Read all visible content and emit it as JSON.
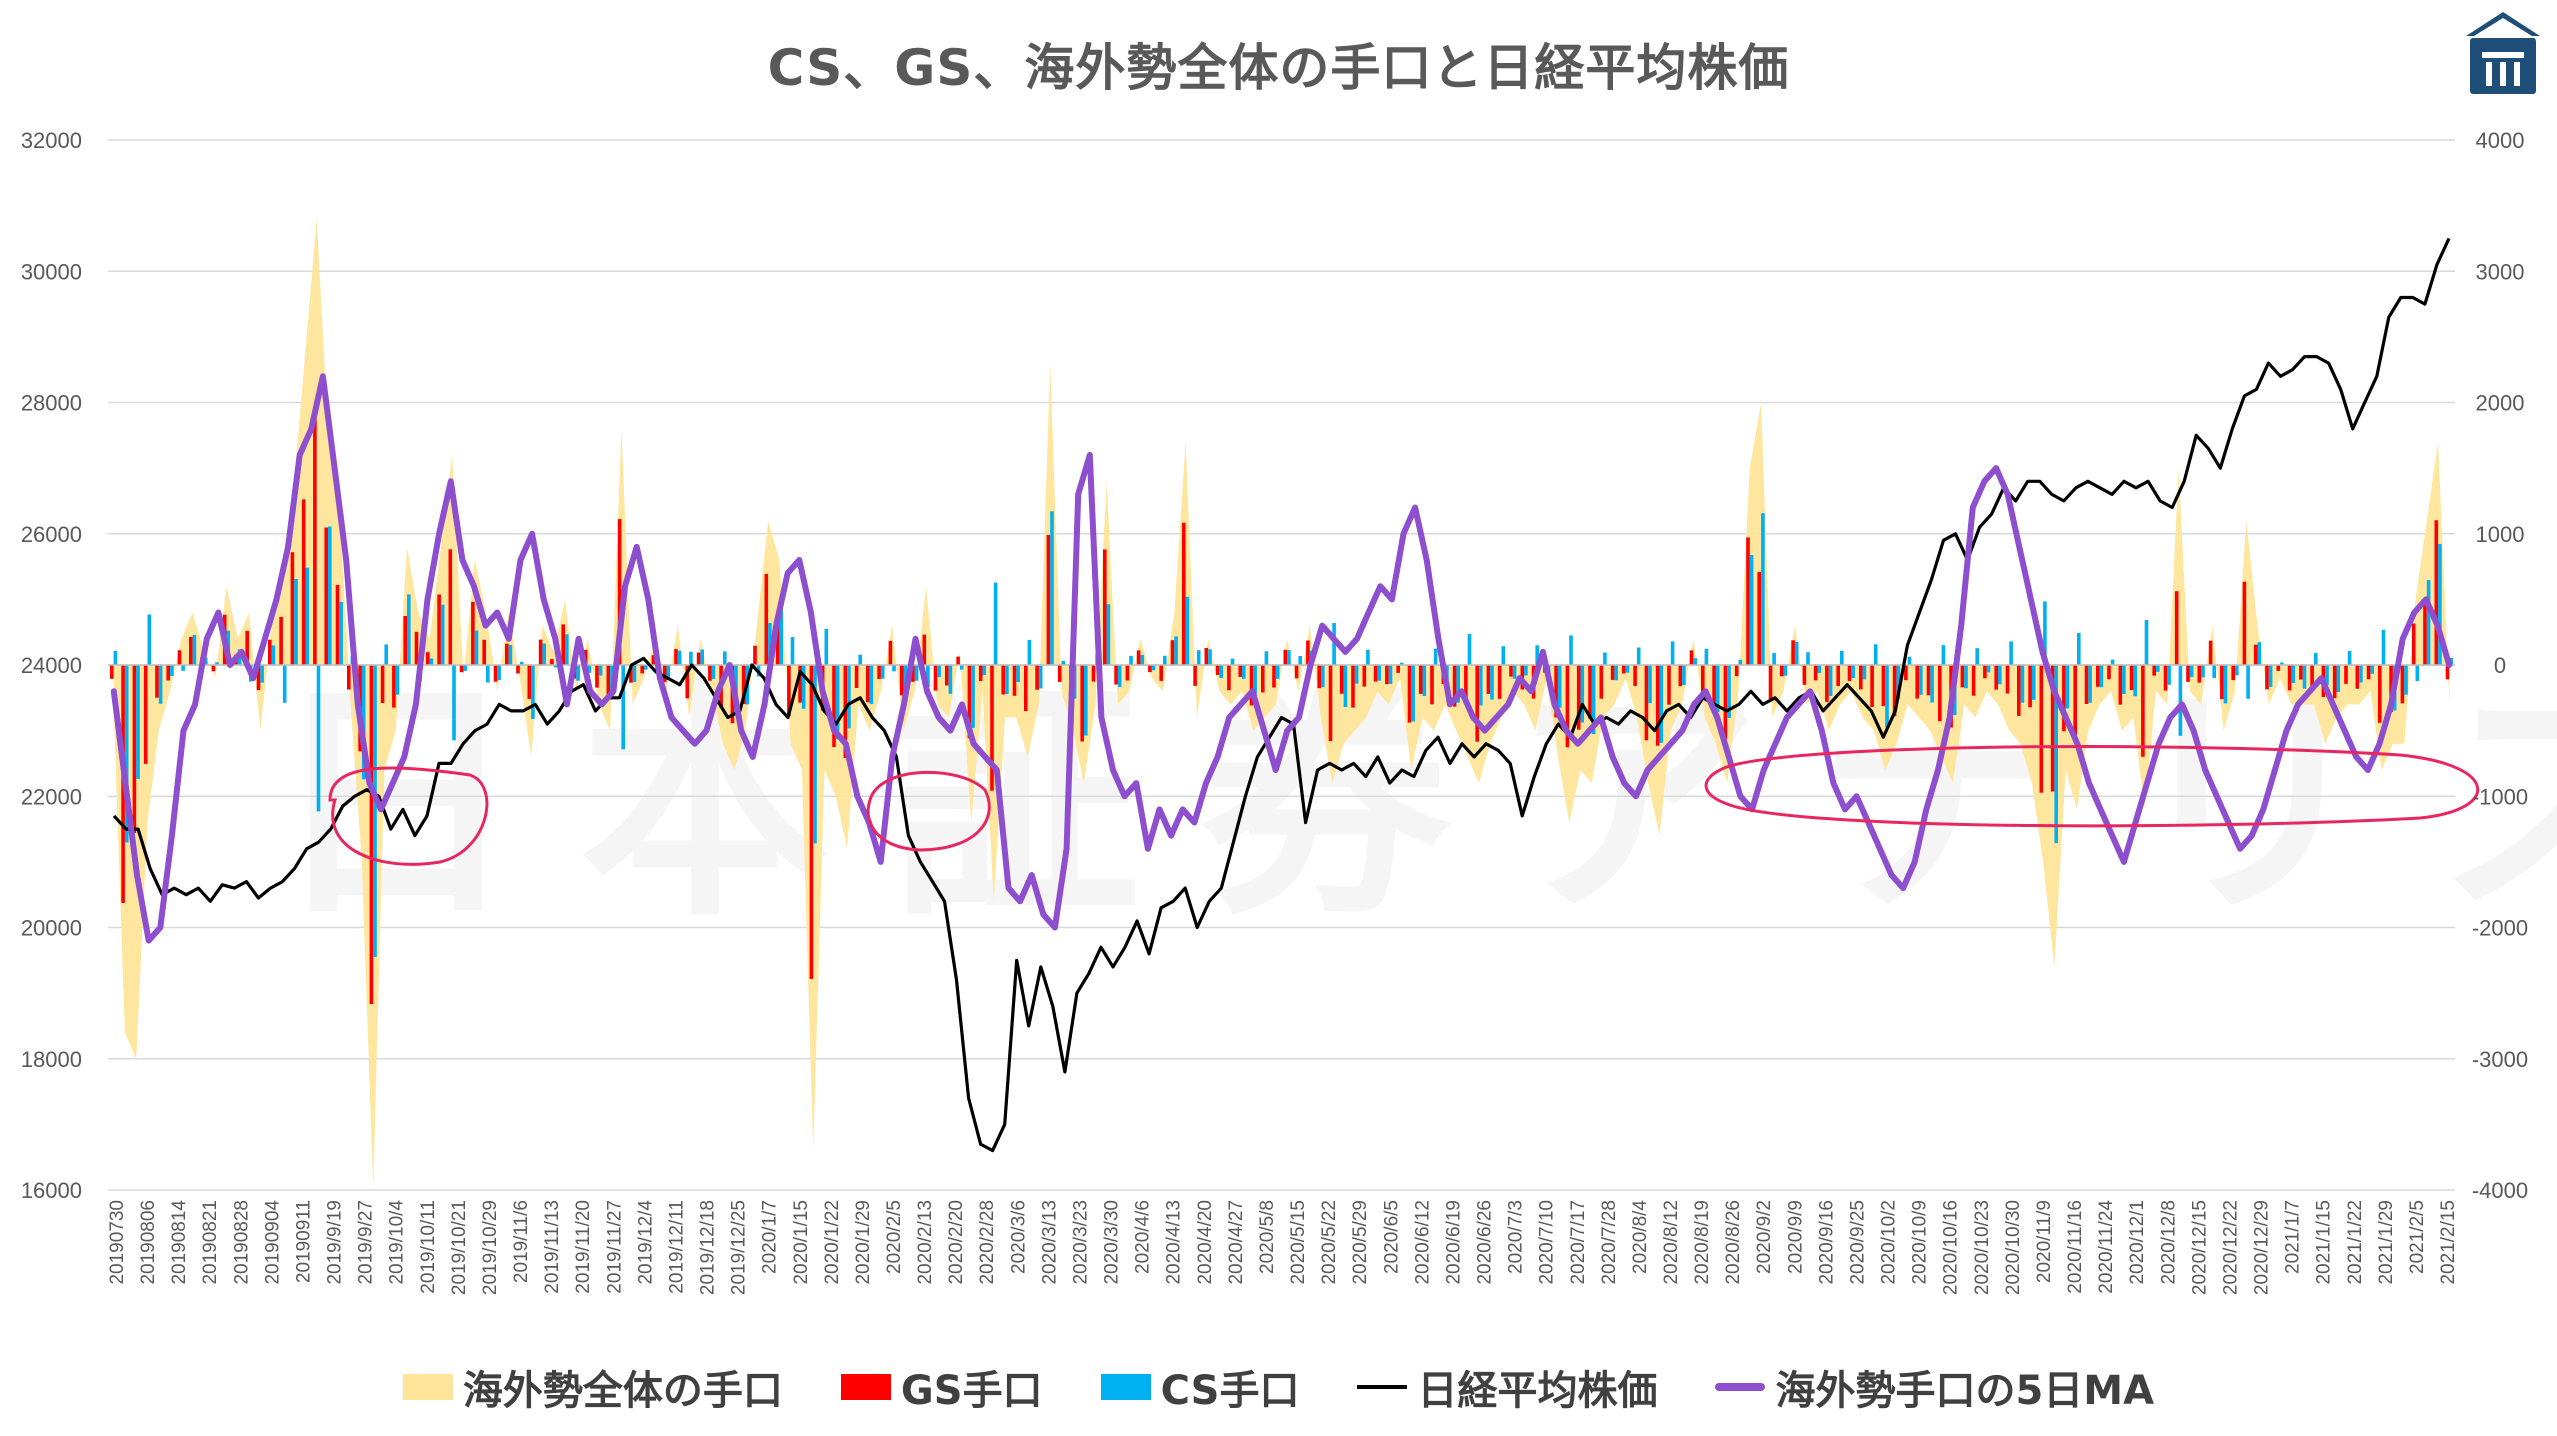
{
  "chart_data": {
    "type": "bar",
    "title": "CS、GS、海外勢全体の手口と日経平均株価",
    "left_axis": {
      "min": 16000,
      "max": 32000,
      "step": 2000,
      "ticks": [
        "16000",
        "18000",
        "20000",
        "22000",
        "24000",
        "26000",
        "28000",
        "30000",
        "32000"
      ]
    },
    "right_axis": {
      "min": -4000,
      "max": 4000,
      "step": 1000,
      "ticks": [
        "-4000",
        "-3000",
        "-2000",
        "-1000",
        "0",
        "1000",
        "2000",
        "3000",
        "4000"
      ]
    },
    "x_tick_labels": [
      "20190730",
      "20190806",
      "20190814",
      "20190821",
      "20190828",
      "20190904",
      "20190911",
      "2019/9/19",
      "2019/9/27",
      "2019/10/4",
      "2019/10/11",
      "2019/10/21",
      "2019/10/29",
      "2019/11/6",
      "2019/11/13",
      "2019/11/20",
      "2019/11/27",
      "2019/12/4",
      "2019/12/11",
      "2019/12/18",
      "2019/12/25",
      "2020/1/7",
      "2020/1/15",
      "2020/1/22",
      "2020/1/29",
      "2020/2/5",
      "2020/2/13",
      "2020/2/20",
      "2020/2/28",
      "2020/3/6",
      "2020/3/13",
      "2020/3/23",
      "2020/3/30",
      "2020/4/6",
      "2020/4/13",
      "2020/4/20",
      "2020/4/27",
      "2020/5/8",
      "2020/5/15",
      "2020/5/22",
      "2020/5/29",
      "2020/6/5",
      "2020/6/12",
      "2020/6/19",
      "2020/6/26",
      "2020/7/3",
      "2020/7/10",
      "2020/7/17",
      "2020/7/28",
      "2020/8/4",
      "2020/8/12",
      "2020/8/19",
      "2020/8/26",
      "2020/9/2",
      "2020/9/9",
      "2020/9/16",
      "2020/9/25",
      "2020/10/2",
      "2020/10/9",
      "2020/10/16",
      "2020/10/23",
      "2020/10/30",
      "2020/11/9",
      "2020/11/16",
      "2020/11/24",
      "2020/12/1",
      "2020/12/8",
      "2020/12/15",
      "2020/12/22",
      "2020/12/29",
      "2021/1/7",
      "2021/1/15",
      "2021/1/22",
      "2021/1/29",
      "2021/2/5",
      "2021/2/15"
    ],
    "series": [
      {
        "name": "海外勢全体の手口",
        "type": "area",
        "axis": "right",
        "color": "#ffe599",
        "values": [
          -300,
          -2800,
          -3000,
          -1200,
          -500,
          -200,
          200,
          400,
          100,
          -100,
          600,
          200,
          400,
          -500,
          300,
          800,
          1400,
          2400,
          3400,
          1800,
          1200,
          -300,
          -1500,
          -4000,
          -800,
          -500,
          900,
          400,
          200,
          900,
          1600,
          -100,
          800,
          400,
          -200,
          400,
          -100,
          -700,
          300,
          100,
          500,
          -200,
          200,
          -300,
          -500,
          1800,
          -300,
          -100,
          200,
          -200,
          300,
          -400,
          200,
          -200,
          -600,
          -800,
          -500,
          300,
          1100,
          800,
          -600,
          -800,
          -3700,
          -800,
          -1000,
          -1400,
          -300,
          -500,
          -200,
          300,
          -500,
          -200,
          600,
          -300,
          -400,
          100,
          -1200,
          -200,
          -1800,
          -400,
          -400,
          -700,
          -300,
          2300,
          -200,
          -500,
          -900,
          -300,
          1400,
          -300,
          -200,
          200,
          -100,
          -200,
          400,
          1700,
          -400,
          200,
          -200,
          -300,
          -200,
          -500,
          -400,
          -300,
          200,
          -200,
          300,
          -400,
          -900,
          -600,
          -500,
          -400,
          -200,
          -300,
          -100,
          -800,
          -400,
          -500,
          -300,
          -500,
          -700,
          -900,
          -600,
          -400,
          -200,
          -300,
          -500,
          -100,
          -700,
          -1200,
          -800,
          -900,
          -400,
          -300,
          -100,
          -400,
          -900,
          -1300,
          -500,
          -300,
          200,
          -400,
          -600,
          -900,
          -200,
          1500,
          2000,
          -400,
          -200,
          300,
          -300,
          -200,
          -500,
          -300,
          -200,
          -400,
          -500,
          -800,
          -600,
          -300,
          -400,
          -500,
          -700,
          -900,
          -300,
          -400,
          -200,
          -300,
          -500,
          -600,
          -900,
          -1500,
          -2300,
          -800,
          -1100,
          -500,
          -300,
          -200,
          -500,
          -400,
          -1100,
          -200,
          -300,
          1500,
          -200,
          -300,
          300,
          -500,
          -200,
          1100,
          300,
          -300,
          -100,
          -300,
          -300,
          -300,
          -600,
          -400,
          -300,
          -300,
          -200,
          -800,
          -600,
          -600,
          500,
          1100,
          1700,
          -300
        ]
      },
      {
        "name": "GS手口",
        "type": "bar",
        "axis": "right",
        "color": "#ff0000"
      },
      {
        "name": "CS手口",
        "type": "bar",
        "axis": "right",
        "color": "#00b0f0"
      },
      {
        "name": "日経平均株価",
        "type": "line",
        "axis": "left",
        "color": "#000000",
        "values": [
          21700,
          21500,
          21500,
          20900,
          20500,
          20600,
          20500,
          20600,
          20400,
          20650,
          20600,
          20700,
          20450,
          20600,
          20700,
          20900,
          21200,
          21300,
          21500,
          21850,
          22000,
          22100,
          22000,
          21500,
          21800,
          21400,
          21700,
          22500,
          22500,
          22800,
          23000,
          23100,
          23400,
          23300,
          23300,
          23400,
          23100,
          23300,
          23600,
          23700,
          23300,
          23500,
          23500,
          24000,
          24100,
          23900,
          23800,
          23700,
          24000,
          23800,
          23500,
          23200,
          23300,
          24000,
          23800,
          23400,
          23200,
          23900,
          23700,
          23300,
          23100,
          23400,
          23500,
          23200,
          23000,
          22600,
          21400,
          21000,
          20700,
          20400,
          19200,
          17400,
          16700,
          16600,
          17000,
          19500,
          18500,
          19400,
          18800,
          17800,
          19000,
          19300,
          19700,
          19400,
          19700,
          20100,
          19600,
          20300,
          20400,
          20600,
          20000,
          20400,
          20600,
          21300,
          22000,
          22600,
          22900,
          23200,
          23100,
          21600,
          22400,
          22500,
          22400,
          22500,
          22300,
          22600,
          22200,
          22400,
          22300,
          22700,
          22900,
          22500,
          22800,
          22600,
          22800,
          22700,
          22500,
          21700,
          22300,
          22800,
          23100,
          22900,
          23400,
          23100,
          23200,
          23100,
          23300,
          23200,
          23000,
          23300,
          23400,
          23200,
          23500,
          23400,
          23300,
          23400,
          23600,
          23400,
          23500,
          23300,
          23500,
          23600,
          23300,
          23500,
          23700,
          23500,
          23300,
          22900,
          23300,
          24300,
          24800,
          25300,
          25900,
          26000,
          25600,
          26100,
          26300,
          26700,
          26500,
          26800,
          26800,
          26600,
          26500,
          26700,
          26800,
          26700,
          26600,
          26800,
          26700,
          26800,
          26500,
          26400,
          26800,
          27500,
          27300,
          27000,
          27600,
          28100,
          28200,
          28600,
          28400,
          28500,
          28700,
          28700,
          28600,
          28200,
          27600,
          28000,
          28400,
          29300,
          29600,
          29600,
          29500,
          30100,
          30500
        ]
      },
      {
        "name": "海外勢手口の5日MA",
        "type": "line",
        "axis": "right",
        "color": "#8e4fcf",
        "values": [
          -200,
          -900,
          -1600,
          -2100,
          -2000,
          -1300,
          -500,
          -300,
          200,
          400,
          0,
          100,
          -100,
          200,
          500,
          900,
          1600,
          1800,
          2200,
          1500,
          800,
          -300,
          -900,
          -1100,
          -900,
          -700,
          -300,
          500,
          1000,
          1400,
          800,
          600,
          300,
          400,
          200,
          800,
          1000,
          500,
          200,
          -300,
          200,
          -200,
          -300,
          -200,
          600,
          900,
          500,
          -100,
          -400,
          -500,
          -600,
          -500,
          -200,
          0,
          -500,
          -700,
          -300,
          300,
          700,
          800,
          400,
          -200,
          -500,
          -600,
          -1000,
          -1200,
          -1500,
          -700,
          -300,
          200,
          -200,
          -400,
          -500,
          -300,
          -600,
          -700,
          -800,
          -1700,
          -1800,
          -1600,
          -1900,
          -2000,
          -1400,
          1300,
          1600,
          -400,
          -800,
          -1000,
          -900,
          -1400,
          -1100,
          -1300,
          -1100,
          -1200,
          -900,
          -700,
          -400,
          -300,
          -200,
          -500,
          -800,
          -500,
          -400,
          0,
          300,
          200,
          100,
          200,
          400,
          600,
          500,
          1000,
          1200,
          800,
          200,
          -300,
          -200,
          -400,
          -500,
          -400,
          -300,
          -100,
          -200,
          100,
          -300,
          -500,
          -600,
          -500,
          -400,
          -700,
          -900,
          -1000,
          -800,
          -700,
          -600,
          -500,
          -300,
          -200,
          -400,
          -700,
          -1000,
          -1100,
          -800,
          -600,
          -400,
          -300,
          -200,
          -500,
          -900,
          -1100,
          -1000,
          -1200,
          -1400,
          -1600,
          -1700,
          -1500,
          -1100,
          -800,
          -400,
          300,
          1200,
          1400,
          1500,
          1300,
          900,
          500,
          100,
          -200,
          -400,
          -600,
          -900,
          -1100,
          -1300,
          -1500,
          -1200,
          -900,
          -600,
          -400,
          -300,
          -500,
          -800,
          -1000,
          -1200,
          -1400,
          -1300,
          -1100,
          -800,
          -500,
          -300,
          -200,
          -100,
          -300,
          -500,
          -700,
          -800,
          -600,
          -300,
          200,
          400,
          500,
          300,
          0
        ]
      }
    ]
  },
  "legend": [
    {
      "label": "海外勢全体の手口",
      "icon": "area-swatch"
    },
    {
      "label": "GS手口",
      "icon": "bar-swatch"
    },
    {
      "label": "CS手口",
      "icon": "bar-swatch"
    },
    {
      "label": "日経平均株価",
      "icon": "line-swatch"
    },
    {
      "label": "海外勢手口の5日MA",
      "icon": "line-swatch"
    }
  ],
  "watermark": "日本証券アナリスト",
  "logo": {
    "icon": "building-logo-icon",
    "color": "#1f4e79"
  }
}
